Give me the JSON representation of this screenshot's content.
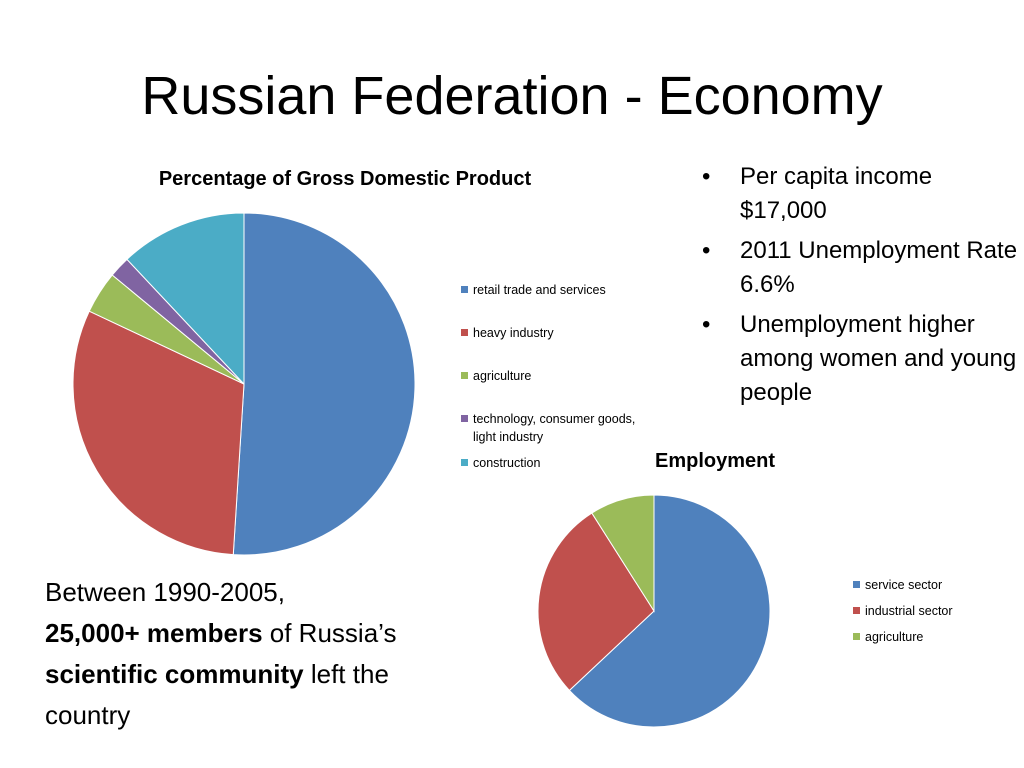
{
  "slide": {
    "title": "Russian Federation - Economy"
  },
  "bullets": [
    "Per capita income $17,000",
    "2011 Unemployment Rate 6.6%",
    "Unemployment higher among women and young people"
  ],
  "note": {
    "part1": "Between 1990-2005, ",
    "part2_bold": "25,000+ members",
    "part3": " of Russia’s ",
    "part4_bold": "scientific community",
    "part5": " left the country"
  },
  "chart_data": [
    {
      "type": "pie",
      "title": "Percentage of Gross Domestic Product",
      "categories": [
        "retail trade and services",
        "heavy industry",
        "agriculture",
        "technology, consumer goods, light industry",
        "construction"
      ],
      "values": [
        51,
        31,
        4,
        2,
        12
      ],
      "colors": [
        "#4F81BD",
        "#C0504D",
        "#9BBB59",
        "#8064A2",
        "#4BACC6"
      ],
      "legend": "right"
    },
    {
      "type": "pie",
      "title": "Employment",
      "categories": [
        "service sector",
        "industrial sector",
        "agriculture"
      ],
      "values": [
        63,
        28,
        9
      ],
      "colors": [
        "#4F81BD",
        "#C0504D",
        "#9BBB59"
      ],
      "legend": "right"
    }
  ]
}
